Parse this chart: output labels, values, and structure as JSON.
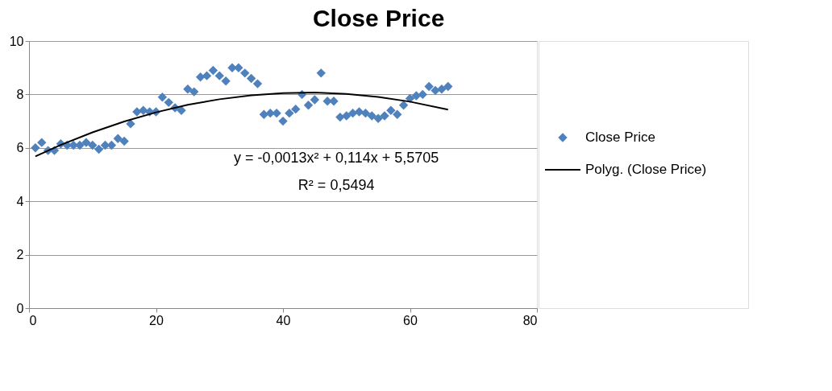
{
  "chart_data": {
    "type": "scatter",
    "title": "Close Price",
    "series": [
      {
        "name": "Close Price",
        "color": "#4f81bd",
        "marker": "diamond",
        "x": [
          1,
          2,
          3,
          4,
          5,
          6,
          7,
          8,
          9,
          10,
          11,
          12,
          13,
          14,
          15,
          16,
          17,
          18,
          19,
          20,
          21,
          22,
          23,
          24,
          25,
          26,
          27,
          28,
          29,
          30,
          31,
          32,
          33,
          34,
          35,
          36,
          37,
          38,
          39,
          40,
          41,
          42,
          43,
          44,
          45,
          46,
          47,
          48,
          49,
          50,
          51,
          52,
          53,
          54,
          55,
          56,
          57,
          58,
          59,
          60,
          61,
          62,
          63,
          64,
          65,
          66
        ],
        "values": [
          6.0,
          6.2,
          5.9,
          5.9,
          6.15,
          6.1,
          6.1,
          6.1,
          6.2,
          6.1,
          5.95,
          6.1,
          6.1,
          6.35,
          6.25,
          6.9,
          7.35,
          7.4,
          7.35,
          7.35,
          7.9,
          7.7,
          7.5,
          7.4,
          8.2,
          8.1,
          8.65,
          8.7,
          8.9,
          8.7,
          8.5,
          9.0,
          9.0,
          8.8,
          8.6,
          8.4,
          7.25,
          7.3,
          7.3,
          7.0,
          7.3,
          7.45,
          8.0,
          7.6,
          7.8,
          8.8,
          7.75,
          7.75,
          7.15,
          7.2,
          7.3,
          7.35,
          7.3,
          7.2,
          7.1,
          7.2,
          7.4,
          7.25,
          7.6,
          7.85,
          7.95,
          8.0,
          8.3,
          8.15,
          8.2,
          8.3
        ]
      },
      {
        "name": "Polyg. (Close Price)",
        "type": "line",
        "color": "#000000",
        "line_style": "solid",
        "x": [
          1,
          5,
          10,
          15,
          20,
          25,
          30,
          35,
          40,
          45,
          50,
          55,
          60,
          66
        ],
        "values": [
          5.68,
          6.11,
          6.58,
          6.99,
          7.33,
          7.61,
          7.82,
          7.97,
          8.05,
          8.07,
          8.02,
          7.91,
          7.73,
          7.43
        ]
      }
    ],
    "annotations": [
      "y = -0,0013x² + 0,114x + 5,5705",
      "R² = 0,5494"
    ],
    "xlim": [
      0,
      80
    ],
    "xticks": [
      0,
      20,
      40,
      60,
      80
    ],
    "ylim": [
      0,
      10
    ],
    "yticks": [
      0,
      2,
      4,
      6,
      8,
      10
    ],
    "grid": "y",
    "legend": "right"
  }
}
